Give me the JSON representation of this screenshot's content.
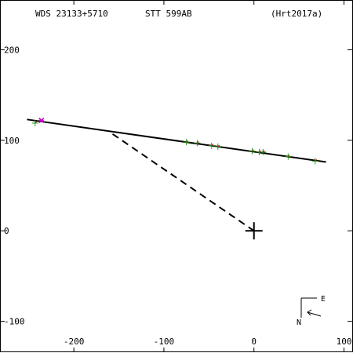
{
  "header": {
    "wds_id": "WDS 23133+5710",
    "discoverer": "STT 599AB",
    "reference": "(Hrt2017a)"
  },
  "chart_data": {
    "type": "scatter",
    "title": "",
    "xlabel": "",
    "ylabel": "",
    "xlim": [
      -282,
      110
    ],
    "ylim": [
      -135,
      255
    ],
    "grid": false,
    "x_ticks": [
      -200,
      -100,
      0,
      100
    ],
    "x_tick_labels": [
      "-200",
      "-100",
      "0",
      "100"
    ],
    "y_ticks": [
      -100,
      0,
      100,
      200
    ],
    "y_tick_labels": [
      "-100",
      "0",
      "100",
      "200"
    ],
    "orbit_line": {
      "x": [
        -252,
        80
      ],
      "y": [
        123,
        76
      ]
    },
    "node_line": {
      "x": [
        -157,
        0
      ],
      "y": [
        107,
        0
      ]
    },
    "primary": {
      "x": 0,
      "y": 0
    },
    "observations": {
      "x": [
        -243,
        -75,
        -63,
        -47,
        -40,
        -2,
        6,
        10,
        38,
        68
      ],
      "y": [
        119,
        98,
        97,
        94,
        93,
        88,
        87,
        87,
        82,
        77
      ]
    },
    "recent_observation": {
      "x": -236,
      "y": 122
    },
    "orientation": {
      "east_label": "E",
      "north_label": "N"
    }
  }
}
